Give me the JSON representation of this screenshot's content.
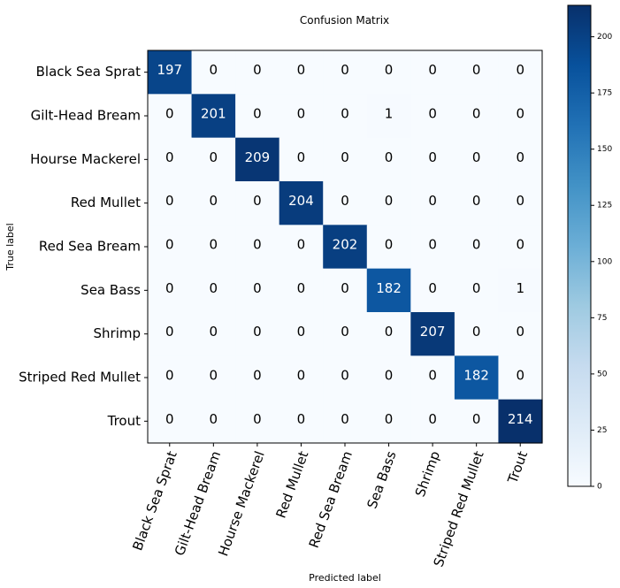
{
  "chart_data": {
    "type": "heatmap",
    "title": "Confusion Matrix",
    "xlabel": "Predicted label",
    "ylabel": "True label",
    "classes": [
      "Black Sea Sprat",
      "Gilt-Head Bream",
      "Hourse Mackerel",
      "Red Mullet",
      "Red Sea Bream",
      "Sea Bass",
      "Shrimp",
      "Striped Red Mullet",
      "Trout"
    ],
    "matrix": [
      [
        197,
        0,
        0,
        0,
        0,
        0,
        0,
        0,
        0
      ],
      [
        0,
        201,
        0,
        0,
        0,
        1,
        0,
        0,
        0
      ],
      [
        0,
        0,
        209,
        0,
        0,
        0,
        0,
        0,
        0
      ],
      [
        0,
        0,
        0,
        204,
        0,
        0,
        0,
        0,
        0
      ],
      [
        0,
        0,
        0,
        0,
        202,
        0,
        0,
        0,
        0
      ],
      [
        0,
        0,
        0,
        0,
        0,
        182,
        0,
        0,
        1
      ],
      [
        0,
        0,
        0,
        0,
        0,
        0,
        207,
        0,
        0
      ],
      [
        0,
        0,
        0,
        0,
        0,
        0,
        0,
        182,
        0
      ],
      [
        0,
        0,
        0,
        0,
        0,
        0,
        0,
        0,
        214
      ]
    ],
    "colorbar": {
      "colormap": "Blues",
      "range": [
        0,
        214
      ],
      "ticks": [
        0,
        25,
        50,
        75,
        100,
        125,
        150,
        175,
        200
      ]
    }
  }
}
